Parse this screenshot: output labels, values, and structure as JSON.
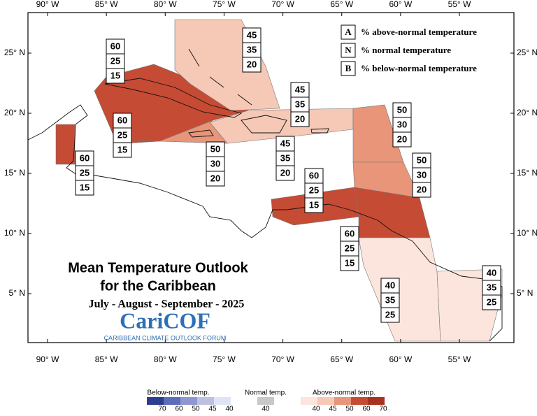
{
  "lon_ticks": [
    {
      "value": -90,
      "label": "90° W"
    },
    {
      "value": -85,
      "label": "85° W"
    },
    {
      "value": -80,
      "label": "80° W"
    },
    {
      "value": -75,
      "label": "75° W"
    },
    {
      "value": -70,
      "label": "70° W"
    },
    {
      "value": -65,
      "label": "65° W"
    },
    {
      "value": -60,
      "label": "60° W"
    },
    {
      "value": -55,
      "label": "55° W"
    }
  ],
  "lat_ticks": [
    {
      "value": 25,
      "label": "25° N"
    },
    {
      "value": 20,
      "label": "20° N"
    },
    {
      "value": 15,
      "label": "15° N"
    },
    {
      "value": 10,
      "label": "10° N"
    },
    {
      "value": 5,
      "label": "5° N"
    }
  ],
  "key": [
    {
      "letter": "A",
      "text": "% above-normal temperature"
    },
    {
      "letter": "N",
      "text": "% normal temperature"
    },
    {
      "letter": "B",
      "text": "% below-normal temperature"
    }
  ],
  "zones": [
    [
      60,
      25,
      15
    ],
    [
      45,
      35,
      20
    ],
    [
      45,
      35,
      20
    ],
    [
      50,
      30,
      20
    ],
    [
      60,
      25,
      15
    ],
    [
      50,
      30,
      20
    ],
    [
      45,
      35,
      20
    ],
    [
      60,
      25,
      15
    ],
    [
      50,
      30,
      20
    ],
    [
      60,
      25,
      15
    ],
    [
      60,
      25,
      15
    ],
    [
      40,
      35,
      25
    ],
    [
      40,
      35,
      25
    ]
  ],
  "title": [
    "Mean Temperature Outlook",
    "for the Caribbean"
  ],
  "period": "July - August - September - 2025",
  "logo": {
    "name": "CariCOF",
    "tagline": "CARIBBEAN CLIMATE OUTLOOK FORUM"
  },
  "scale": {
    "below": {
      "label": "Below-normal temp.",
      "ticks": [
        70,
        60,
        50,
        45,
        40
      ],
      "colors": [
        "#2b3d8f",
        "#5d6dba",
        "#8f97cf",
        "#bcc1e3",
        "#e0e4f4"
      ]
    },
    "normal": {
      "label": "Normal temp.",
      "ticks": [
        40
      ],
      "colors": [
        "#c8c8c8"
      ]
    },
    "above": {
      "label": "Above-normal temp.",
      "ticks": [
        40,
        45,
        50,
        60,
        70
      ],
      "colors": [
        "#fbe5dc",
        "#f6c8b6",
        "#e8957a",
        "#c64b34",
        "#a8321f"
      ]
    }
  }
}
